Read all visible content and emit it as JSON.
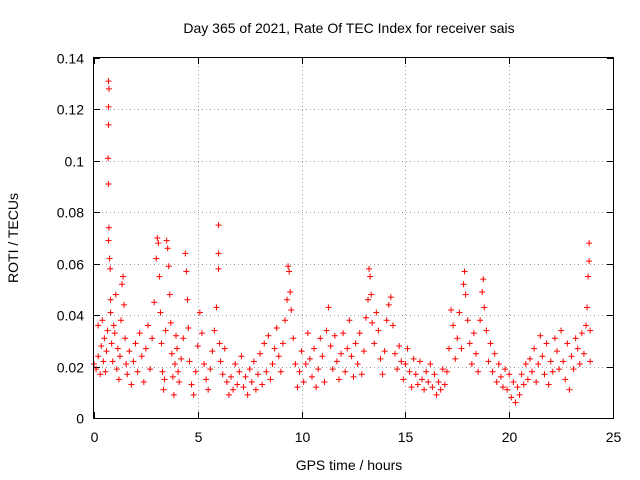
{
  "chart_data": {
    "type": "scatter",
    "title": "Day 365 of 2021, Rate Of TEC Index for receiver sais",
    "xlabel": "GPS time / hours",
    "ylabel": "ROTI / TECUs",
    "xlim": [
      0,
      25
    ],
    "ylim": [
      0,
      0.14
    ],
    "xticks": [
      0,
      5,
      10,
      15,
      20,
      25
    ],
    "yticks": [
      0,
      0.02,
      0.04,
      0.06,
      0.08,
      0.1,
      0.12,
      0.14
    ],
    "xtick_labels": [
      "0",
      "5",
      "10",
      "15",
      "20",
      "25"
    ],
    "ytick_labels": [
      "0",
      "0.02",
      "0.04",
      "0.06",
      "0.08",
      "0.1",
      "0.12",
      "0.14"
    ],
    "grid": true,
    "marker": "+",
    "color": "#ff0000",
    "series": [
      {
        "points": [
          [
            0.0,
            0.021
          ],
          [
            0.1,
            0.019
          ],
          [
            0.2,
            0.024
          ],
          [
            0.2,
            0.036
          ],
          [
            0.3,
            0.017
          ],
          [
            0.35,
            0.028
          ],
          [
            0.4,
            0.038
          ],
          [
            0.45,
            0.022
          ],
          [
            0.5,
            0.031
          ],
          [
            0.55,
            0.018
          ],
          [
            0.6,
            0.026
          ],
          [
            0.65,
            0.034
          ],
          [
            0.7,
            0.131
          ],
          [
            0.72,
            0.128
          ],
          [
            0.7,
            0.121
          ],
          [
            0.7,
            0.114
          ],
          [
            0.68,
            0.101
          ],
          [
            0.7,
            0.091
          ],
          [
            0.72,
            0.074
          ],
          [
            0.7,
            0.069
          ],
          [
            0.75,
            0.062
          ],
          [
            0.78,
            0.058
          ],
          [
            0.8,
            0.046
          ],
          [
            0.8,
            0.041
          ],
          [
            0.85,
            0.029
          ],
          [
            0.9,
            0.022
          ],
          [
            0.95,
            0.036
          ],
          [
            1.0,
            0.033
          ],
          [
            1.05,
            0.048
          ],
          [
            1.1,
            0.019
          ],
          [
            1.15,
            0.027
          ],
          [
            1.2,
            0.015
          ],
          [
            1.25,
            0.024
          ],
          [
            1.3,
            0.038
          ],
          [
            1.35,
            0.052
          ],
          [
            1.4,
            0.055
          ],
          [
            1.45,
            0.044
          ],
          [
            1.5,
            0.031
          ],
          [
            1.55,
            0.021
          ],
          [
            1.6,
            0.017
          ],
          [
            1.7,
            0.026
          ],
          [
            1.8,
            0.013
          ],
          [
            1.9,
            0.022
          ],
          [
            2.0,
            0.029
          ],
          [
            2.1,
            0.018
          ],
          [
            2.2,
            0.033
          ],
          [
            2.3,
            0.024
          ],
          [
            2.4,
            0.014
          ],
          [
            2.5,
            0.027
          ],
          [
            2.6,
            0.036
          ],
          [
            2.7,
            0.019
          ],
          [
            2.8,
            0.031
          ],
          [
            2.9,
            0.045
          ],
          [
            3.0,
            0.062
          ],
          [
            3.05,
            0.07
          ],
          [
            3.1,
            0.068
          ],
          [
            3.15,
            0.055
          ],
          [
            3.2,
            0.041
          ],
          [
            3.25,
            0.029
          ],
          [
            3.3,
            0.018
          ],
          [
            3.35,
            0.011
          ],
          [
            3.4,
            0.015
          ],
          [
            3.45,
            0.034
          ],
          [
            3.5,
            0.069
          ],
          [
            3.55,
            0.066
          ],
          [
            3.6,
            0.059
          ],
          [
            3.65,
            0.048
          ],
          [
            3.7,
            0.037
          ],
          [
            3.75,
            0.025
          ],
          [
            3.8,
            0.016
          ],
          [
            3.85,
            0.009
          ],
          [
            3.9,
            0.021
          ],
          [
            3.95,
            0.032
          ],
          [
            4.0,
            0.027
          ],
          [
            4.05,
            0.018
          ],
          [
            4.1,
            0.014
          ],
          [
            4.2,
            0.023
          ],
          [
            4.3,
            0.031
          ],
          [
            4.4,
            0.064
          ],
          [
            4.45,
            0.057
          ],
          [
            4.5,
            0.046
          ],
          [
            4.55,
            0.035
          ],
          [
            4.6,
            0.022
          ],
          [
            4.7,
            0.013
          ],
          [
            4.8,
            0.009
          ],
          [
            4.9,
            0.018
          ],
          [
            5.0,
            0.028
          ],
          [
            5.1,
            0.041
          ],
          [
            5.2,
            0.033
          ],
          [
            5.3,
            0.021
          ],
          [
            5.4,
            0.015
          ],
          [
            5.5,
            0.011
          ],
          [
            5.6,
            0.019
          ],
          [
            5.7,
            0.026
          ],
          [
            5.8,
            0.034
          ],
          [
            5.9,
            0.043
          ],
          [
            6.0,
            0.075
          ],
          [
            6.0,
            0.064
          ],
          [
            6.0,
            0.058
          ],
          [
            6.05,
            0.029
          ],
          [
            6.1,
            0.022
          ],
          [
            6.2,
            0.017
          ],
          [
            6.3,
            0.027
          ],
          [
            6.4,
            0.014
          ],
          [
            6.5,
            0.009
          ],
          [
            6.6,
            0.016
          ],
          [
            6.7,
            0.011
          ],
          [
            6.8,
            0.021
          ],
          [
            6.9,
            0.013
          ],
          [
            7.0,
            0.018
          ],
          [
            7.1,
            0.024
          ],
          [
            7.2,
            0.012
          ],
          [
            7.3,
            0.016
          ],
          [
            7.4,
            0.009
          ],
          [
            7.5,
            0.019
          ],
          [
            7.6,
            0.014
          ],
          [
            7.7,
            0.022
          ],
          [
            7.8,
            0.011
          ],
          [
            7.9,
            0.017
          ],
          [
            8.0,
            0.025
          ],
          [
            8.1,
            0.013
          ],
          [
            8.2,
            0.029
          ],
          [
            8.3,
            0.018
          ],
          [
            8.4,
            0.032
          ],
          [
            8.5,
            0.015
          ],
          [
            8.6,
            0.021
          ],
          [
            8.7,
            0.027
          ],
          [
            8.8,
            0.035
          ],
          [
            8.9,
            0.024
          ],
          [
            9.0,
            0.018
          ],
          [
            9.1,
            0.029
          ],
          [
            9.2,
            0.038
          ],
          [
            9.3,
            0.046
          ],
          [
            9.35,
            0.059
          ],
          [
            9.4,
            0.057
          ],
          [
            9.45,
            0.049
          ],
          [
            9.5,
            0.042
          ],
          [
            9.6,
            0.031
          ],
          [
            9.7,
            0.021
          ],
          [
            9.8,
            0.012
          ],
          [
            9.9,
            0.018
          ],
          [
            10.0,
            0.026
          ],
          [
            10.1,
            0.014
          ],
          [
            10.2,
            0.021
          ],
          [
            10.3,
            0.033
          ],
          [
            10.4,
            0.023
          ],
          [
            10.5,
            0.016
          ],
          [
            10.6,
            0.027
          ],
          [
            10.7,
            0.012
          ],
          [
            10.8,
            0.019
          ],
          [
            10.9,
            0.031
          ],
          [
            11.0,
            0.024
          ],
          [
            11.1,
            0.014
          ],
          [
            11.2,
            0.034
          ],
          [
            11.3,
            0.043
          ],
          [
            11.4,
            0.028
          ],
          [
            11.5,
            0.019
          ],
          [
            11.6,
            0.032
          ],
          [
            11.7,
            0.022
          ],
          [
            11.8,
            0.015
          ],
          [
            11.9,
            0.025
          ],
          [
            12.0,
            0.033
          ],
          [
            12.1,
            0.018
          ],
          [
            12.2,
            0.027
          ],
          [
            12.3,
            0.038
          ],
          [
            12.4,
            0.024
          ],
          [
            12.5,
            0.016
          ],
          [
            12.6,
            0.029
          ],
          [
            12.7,
            0.021
          ],
          [
            12.8,
            0.033
          ],
          [
            12.9,
            0.017
          ],
          [
            13.0,
            0.026
          ],
          [
            13.1,
            0.039
          ],
          [
            13.2,
            0.046
          ],
          [
            13.25,
            0.058
          ],
          [
            13.3,
            0.055
          ],
          [
            13.35,
            0.048
          ],
          [
            13.4,
            0.037
          ],
          [
            13.5,
            0.029
          ],
          [
            13.6,
            0.041
          ],
          [
            13.7,
            0.034
          ],
          [
            13.8,
            0.023
          ],
          [
            13.9,
            0.017
          ],
          [
            14.0,
            0.026
          ],
          [
            14.1,
            0.038
          ],
          [
            14.2,
            0.044
          ],
          [
            14.3,
            0.047
          ],
          [
            14.4,
            0.036
          ],
          [
            14.5,
            0.025
          ],
          [
            14.6,
            0.019
          ],
          [
            14.7,
            0.028
          ],
          [
            14.8,
            0.022
          ],
          [
            14.9,
            0.015
          ],
          [
            15.0,
            0.021
          ],
          [
            15.1,
            0.027
          ],
          [
            15.2,
            0.018
          ],
          [
            15.3,
            0.012
          ],
          [
            15.4,
            0.023
          ],
          [
            15.5,
            0.017
          ],
          [
            15.6,
            0.013
          ],
          [
            15.7,
            0.022
          ],
          [
            15.8,
            0.015
          ],
          [
            15.9,
            0.011
          ],
          [
            16.0,
            0.018
          ],
          [
            16.1,
            0.014
          ],
          [
            16.2,
            0.021
          ],
          [
            16.3,
            0.012
          ],
          [
            16.4,
            0.017
          ],
          [
            16.5,
            0.009
          ],
          [
            16.6,
            0.014
          ],
          [
            16.7,
            0.011
          ],
          [
            16.8,
            0.019
          ],
          [
            16.9,
            0.013
          ],
          [
            17.0,
            0.018
          ],
          [
            17.1,
            0.027
          ],
          [
            17.2,
            0.042
          ],
          [
            17.3,
            0.036
          ],
          [
            17.4,
            0.023
          ],
          [
            17.5,
            0.031
          ],
          [
            17.6,
            0.041
          ],
          [
            17.7,
            0.027
          ],
          [
            17.8,
            0.052
          ],
          [
            17.85,
            0.057
          ],
          [
            17.9,
            0.048
          ],
          [
            18.0,
            0.038
          ],
          [
            18.1,
            0.029
          ],
          [
            18.2,
            0.021
          ],
          [
            18.3,
            0.033
          ],
          [
            18.4,
            0.025
          ],
          [
            18.5,
            0.018
          ],
          [
            18.6,
            0.038
          ],
          [
            18.7,
            0.049
          ],
          [
            18.75,
            0.054
          ],
          [
            18.8,
            0.043
          ],
          [
            18.9,
            0.034
          ],
          [
            19.0,
            0.022
          ],
          [
            19.1,
            0.029
          ],
          [
            19.2,
            0.018
          ],
          [
            19.3,
            0.025
          ],
          [
            19.4,
            0.014
          ],
          [
            19.5,
            0.021
          ],
          [
            19.6,
            0.016
          ],
          [
            19.7,
            0.012
          ],
          [
            19.8,
            0.019
          ],
          [
            19.9,
            0.011
          ],
          [
            20.0,
            0.017
          ],
          [
            20.1,
            0.008
          ],
          [
            20.2,
            0.014
          ],
          [
            20.3,
            0.006
          ],
          [
            20.4,
            0.012
          ],
          [
            20.5,
            0.009
          ],
          [
            20.6,
            0.017
          ],
          [
            20.7,
            0.013
          ],
          [
            20.8,
            0.021
          ],
          [
            20.9,
            0.015
          ],
          [
            21.0,
            0.023
          ],
          [
            21.1,
            0.018
          ],
          [
            21.2,
            0.027
          ],
          [
            21.3,
            0.014
          ],
          [
            21.4,
            0.021
          ],
          [
            21.5,
            0.032
          ],
          [
            21.6,
            0.024
          ],
          [
            21.7,
            0.017
          ],
          [
            21.8,
            0.029
          ],
          [
            21.9,
            0.013
          ],
          [
            22.0,
            0.022
          ],
          [
            22.1,
            0.018
          ],
          [
            22.2,
            0.031
          ],
          [
            22.3,
            0.026
          ],
          [
            22.4,
            0.019
          ],
          [
            22.5,
            0.034
          ],
          [
            22.6,
            0.022
          ],
          [
            22.7,
            0.015
          ],
          [
            22.8,
            0.029
          ],
          [
            22.9,
            0.011
          ],
          [
            23.0,
            0.024
          ],
          [
            23.1,
            0.019
          ],
          [
            23.2,
            0.031
          ],
          [
            23.3,
            0.027
          ],
          [
            23.4,
            0.021
          ],
          [
            23.5,
            0.033
          ],
          [
            23.6,
            0.025
          ],
          [
            23.7,
            0.036
          ],
          [
            23.75,
            0.043
          ],
          [
            23.8,
            0.055
          ],
          [
            23.85,
            0.061
          ],
          [
            23.85,
            0.068
          ],
          [
            23.9,
            0.034
          ],
          [
            23.9,
            0.022
          ]
        ]
      }
    ]
  }
}
